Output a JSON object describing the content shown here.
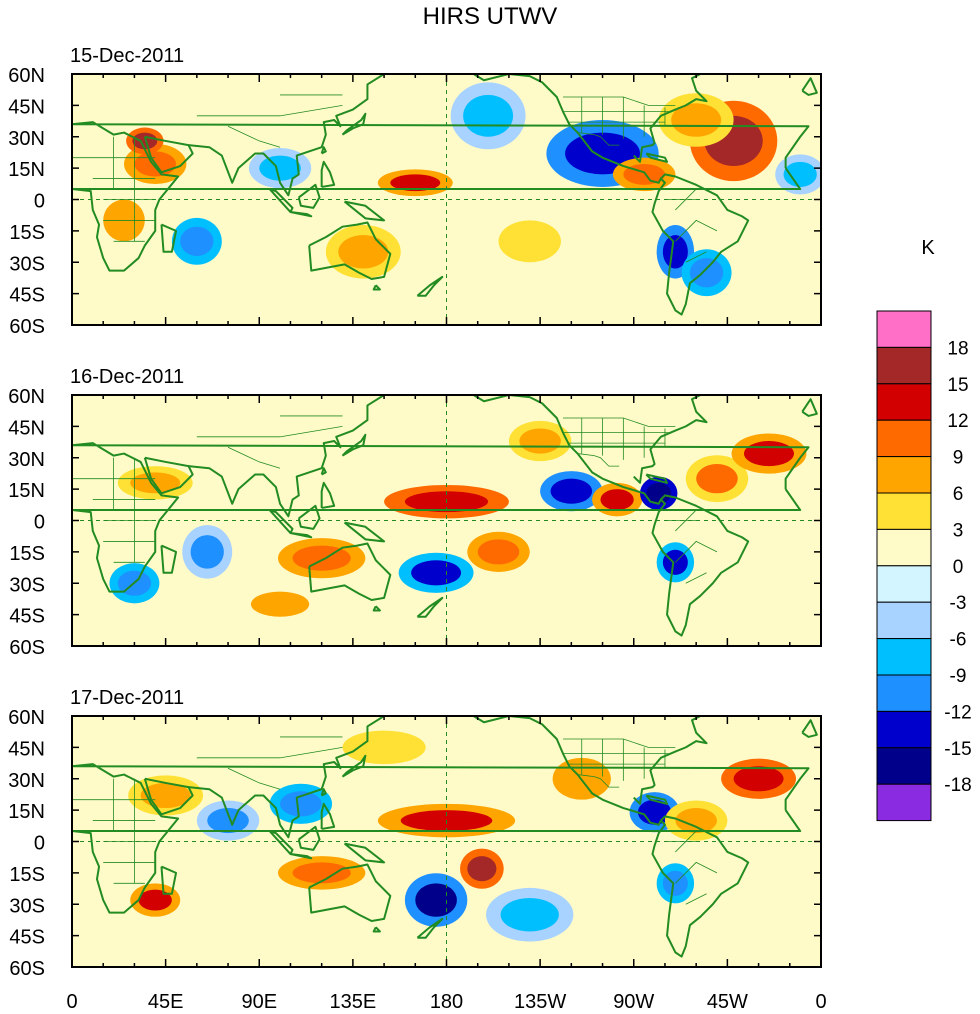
{
  "title": "HIRS UTWV",
  "unit_label": "K",
  "panels": [
    {
      "date": "15-Dec-2011",
      "blobs": [
        {
          "lon": 255,
          "lat": 22,
          "rx": 18,
          "ry": 10,
          "v": -13
        },
        {
          "lon": 275,
          "lat": 12,
          "rx": 10,
          "ry": 5,
          "v": 11
        },
        {
          "lon": 318,
          "lat": 28,
          "rx": 14,
          "ry": 12,
          "v": 16
        },
        {
          "lon": 300,
          "lat": 38,
          "rx": 12,
          "ry": 8,
          "v": 9
        },
        {
          "lon": 290,
          "lat": -25,
          "rx": 6,
          "ry": 8,
          "v": -13
        },
        {
          "lon": 305,
          "lat": -35,
          "rx": 8,
          "ry": 7,
          "v": -10
        },
        {
          "lon": 165,
          "lat": 8,
          "rx": 12,
          "ry": 4,
          "v": 13
        },
        {
          "lon": 40,
          "lat": 17,
          "rx": 10,
          "ry": 6,
          "v": 11
        },
        {
          "lon": 35,
          "lat": 28,
          "rx": 6,
          "ry": 4,
          "v": 16
        },
        {
          "lon": 60,
          "lat": -20,
          "rx": 8,
          "ry": 7,
          "v": -10
        },
        {
          "lon": 25,
          "lat": -10,
          "rx": 10,
          "ry": 10,
          "v": 7
        },
        {
          "lon": 140,
          "lat": -25,
          "rx": 12,
          "ry": 8,
          "v": 8
        },
        {
          "lon": 200,
          "lat": 40,
          "rx": 12,
          "ry": 10,
          "v": -8
        },
        {
          "lon": 100,
          "lat": 15,
          "rx": 10,
          "ry": 6,
          "v": -7
        },
        {
          "lon": 220,
          "lat": -20,
          "rx": 15,
          "ry": 10,
          "v": 6
        },
        {
          "lon": 350,
          "lat": 12,
          "rx": 8,
          "ry": 6,
          "v": -8
        }
      ]
    },
    {
      "date": "16-Dec-2011",
      "blobs": [
        {
          "lon": 180,
          "lat": 9,
          "rx": 20,
          "ry": 5,
          "v": 14
        },
        {
          "lon": 240,
          "lat": 14,
          "rx": 10,
          "ry": 6,
          "v": -13
        },
        {
          "lon": 262,
          "lat": 10,
          "rx": 8,
          "ry": 5,
          "v": 13
        },
        {
          "lon": 282,
          "lat": 13,
          "rx": 6,
          "ry": 5,
          "v": -16
        },
        {
          "lon": 310,
          "lat": 20,
          "rx": 10,
          "ry": 7,
          "v": 10
        },
        {
          "lon": 335,
          "lat": 32,
          "rx": 12,
          "ry": 6,
          "v": 13
        },
        {
          "lon": 205,
          "lat": -15,
          "rx": 10,
          "ry": 6,
          "v": 12
        },
        {
          "lon": 120,
          "lat": -18,
          "rx": 14,
          "ry": 6,
          "v": 11
        },
        {
          "lon": 175,
          "lat": -25,
          "rx": 12,
          "ry": 6,
          "v": -12
        },
        {
          "lon": 65,
          "lat": -15,
          "rx": 8,
          "ry": 8,
          "v": -9
        },
        {
          "lon": 40,
          "lat": 18,
          "rx": 12,
          "ry": 5,
          "v": 9
        },
        {
          "lon": 290,
          "lat": -20,
          "rx": 6,
          "ry": 6,
          "v": -12
        },
        {
          "lon": 225,
          "lat": 38,
          "rx": 10,
          "ry": 6,
          "v": 8
        },
        {
          "lon": 30,
          "lat": -30,
          "rx": 8,
          "ry": 6,
          "v": -10
        },
        {
          "lon": 100,
          "lat": -40,
          "rx": 14,
          "ry": 6,
          "v": 7
        }
      ]
    },
    {
      "date": "17-Dec-2011",
      "blobs": [
        {
          "lon": 180,
          "lat": 10,
          "rx": 22,
          "ry": 5,
          "v": 13
        },
        {
          "lon": 197,
          "lat": -13,
          "rx": 7,
          "ry": 6,
          "v": 16
        },
        {
          "lon": 175,
          "lat": -28,
          "rx": 10,
          "ry": 8,
          "v": -15
        },
        {
          "lon": 120,
          "lat": -15,
          "rx": 14,
          "ry": 5,
          "v": 12
        },
        {
          "lon": 40,
          "lat": -28,
          "rx": 8,
          "ry": 5,
          "v": 13
        },
        {
          "lon": 45,
          "lat": 22,
          "rx": 12,
          "ry": 6,
          "v": 8
        },
        {
          "lon": 75,
          "lat": 10,
          "rx": 10,
          "ry": 6,
          "v": -9
        },
        {
          "lon": 330,
          "lat": 30,
          "rx": 12,
          "ry": 6,
          "v": 14
        },
        {
          "lon": 280,
          "lat": 14,
          "rx": 8,
          "ry": 6,
          "v": -13
        },
        {
          "lon": 300,
          "lat": 10,
          "rx": 10,
          "ry": 6,
          "v": 9
        },
        {
          "lon": 245,
          "lat": 30,
          "rx": 14,
          "ry": 10,
          "v": 7
        },
        {
          "lon": 110,
          "lat": 18,
          "rx": 10,
          "ry": 6,
          "v": -10
        },
        {
          "lon": 220,
          "lat": -35,
          "rx": 14,
          "ry": 8,
          "v": -7
        },
        {
          "lon": 290,
          "lat": -20,
          "rx": 6,
          "ry": 6,
          "v": -11
        },
        {
          "lon": 150,
          "lat": 45,
          "rx": 20,
          "ry": 8,
          "v": 6
        }
      ]
    }
  ],
  "x_ticks": [
    "0",
    "45E",
    "90E",
    "135E",
    "180",
    "135W",
    "90W",
    "45W",
    "0"
  ],
  "y_ticks": [
    "60N",
    "45N",
    "30N",
    "15N",
    "0",
    "15S",
    "30S",
    "45S",
    "60S"
  ],
  "colorbar": {
    "labels": [
      "18",
      "15",
      "12",
      "9",
      "6",
      "3",
      "0",
      "-3",
      "-6",
      "-9",
      "-12",
      "-15",
      "-18"
    ],
    "colors": [
      "#ff6ec7",
      "#a52828",
      "#d20000",
      "#ff6a00",
      "#ffa500",
      "#ffe135",
      "#fffbc8",
      "#d2f5ff",
      "#a8d2ff",
      "#00bfff",
      "#1e90ff",
      "#0000cd",
      "#00008b",
      "#8a2be2"
    ]
  },
  "coast_color": "#228b22"
}
